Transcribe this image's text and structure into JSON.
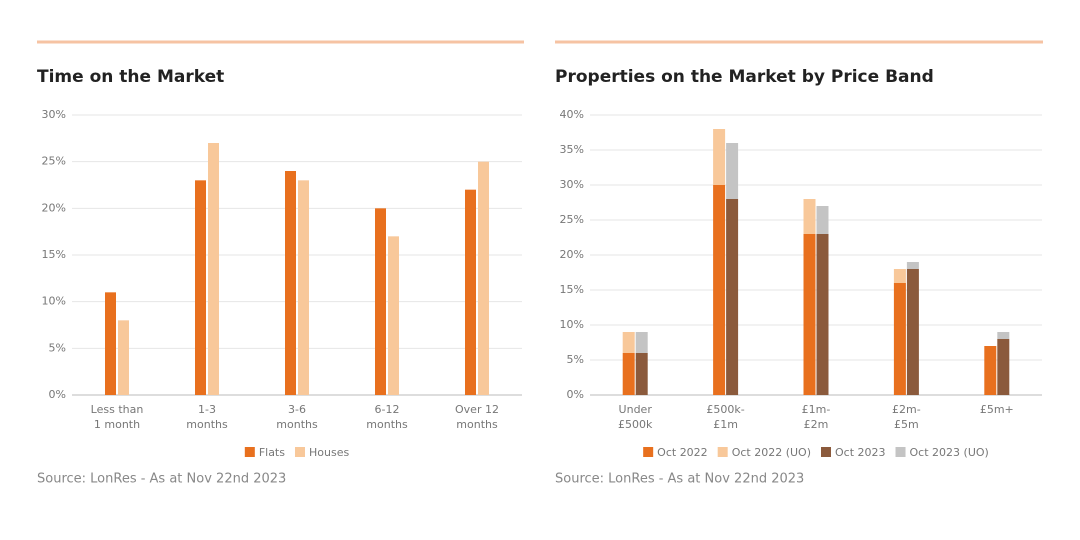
{
  "chart_data": [
    {
      "type": "bar",
      "title": "Time on the Market",
      "categories": [
        [
          "Less than",
          "1 month"
        ],
        [
          "1-3",
          "months"
        ],
        [
          "3-6",
          "months"
        ],
        [
          "6-12",
          "months"
        ],
        [
          "Over 12",
          "months"
        ]
      ],
      "series": [
        {
          "name": "Flats",
          "color": "#e8701e",
          "values": [
            11,
            23,
            24,
            20,
            22
          ]
        },
        {
          "name": "Houses",
          "color": "#f8c89a",
          "values": [
            8,
            27,
            23,
            17,
            25
          ]
        }
      ],
      "ylim": [
        0,
        30
      ],
      "yticks": [
        {
          "value": 0,
          "label": "0%"
        },
        {
          "value": 5,
          "label": "5%"
        },
        {
          "value": 10,
          "label": "10%"
        },
        {
          "value": 15,
          "label": "15%"
        },
        {
          "value": 20,
          "label": "20%"
        },
        {
          "value": 25,
          "label": "25%"
        },
        {
          "value": 30,
          "label": "30%"
        }
      ],
      "grid": true,
      "legend": "bottom",
      "source": "Source: LonRes - As at Nov 22nd 2023"
    },
    {
      "type": "stacked-bar",
      "title": "Properties on the Market by Price Band",
      "categories": [
        [
          "Under",
          "£500k"
        ],
        [
          "£500k-",
          "£1m"
        ],
        [
          "£1m-",
          "£2m"
        ],
        [
          "£2m-",
          "£5m"
        ],
        [
          "£5m+"
        ]
      ],
      "stacks": [
        [
          {
            "name": "Oct 2022",
            "color": "#e8701e",
            "values": [
              6,
              30,
              23,
              16,
              7
            ]
          },
          {
            "name": "Oct 2022 (UO)",
            "color": "#f8c89a",
            "values": [
              3,
              8,
              5,
              2,
              0
            ]
          }
        ],
        [
          {
            "name": "Oct 2023",
            "color": "#8b5a3c",
            "values": [
              6,
              28,
              23,
              18,
              8
            ]
          },
          {
            "name": "Oct 2023 (UO)",
            "color": "#c4c4c4",
            "values": [
              3,
              8,
              4,
              1,
              1
            ]
          }
        ]
      ],
      "ylim": [
        0,
        40
      ],
      "yticks": [
        {
          "value": 0,
          "label": "0%"
        },
        {
          "value": 5,
          "label": "5%"
        },
        {
          "value": 10,
          "label": "10%"
        },
        {
          "value": 15,
          "label": "15%"
        },
        {
          "value": 20,
          "label": "20%"
        },
        {
          "value": 25,
          "label": "25%"
        },
        {
          "value": 30,
          "label": "30%"
        },
        {
          "value": 35,
          "label": "35%"
        },
        {
          "value": 40,
          "label": "40%"
        }
      ],
      "grid": true,
      "legend": "bottom",
      "source": "Source: LonRes - As at Nov 22nd 2023"
    }
  ]
}
